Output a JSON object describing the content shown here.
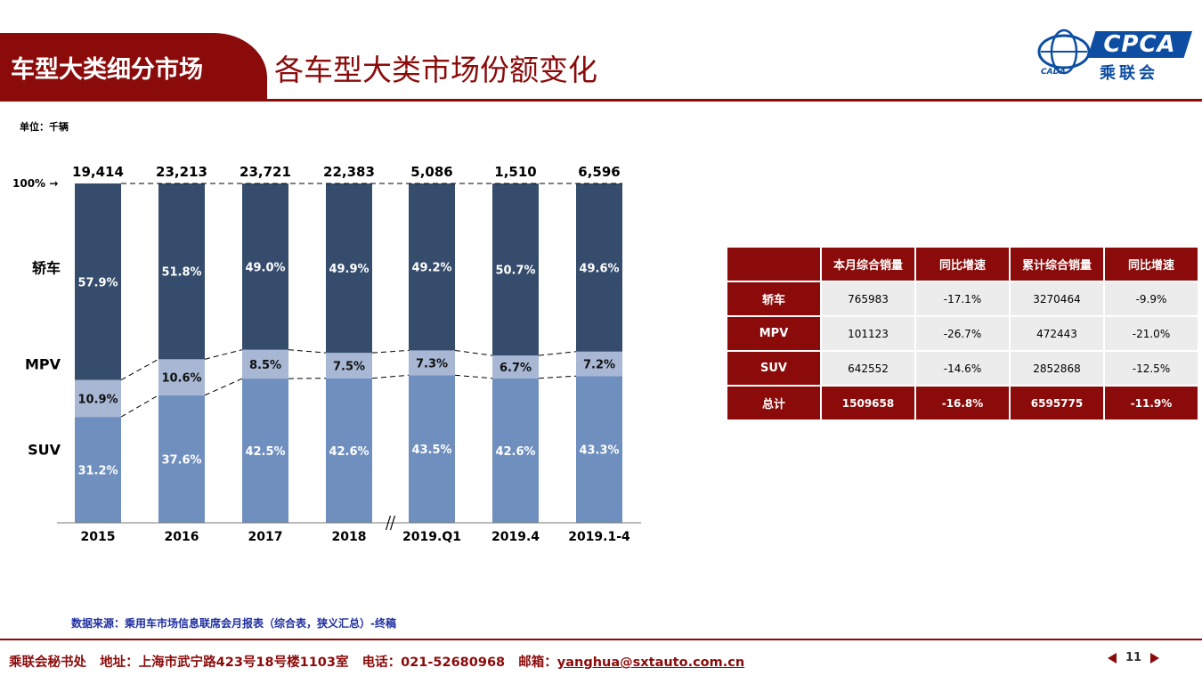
{
  "header": {
    "section_label": "车型大类细分市场",
    "title": "各车型大类市场份额变化"
  },
  "logo": {
    "brand": "CPCA",
    "cn_name": "乘联会",
    "sub": "CADA"
  },
  "unit_label": "单位：千辆",
  "chart_data": {
    "type": "bar",
    "stacked": true,
    "normalized": true,
    "ref_label": "100% →",
    "categories": [
      "2015",
      "2016",
      "2017",
      "2018",
      "2019.Q1",
      "2019.4",
      "2019.1-4"
    ],
    "totals": [
      "19,414",
      "23,213",
      "23,721",
      "22,383",
      "5,086",
      "1,510",
      "6,596"
    ],
    "series": [
      {
        "name": "SUV",
        "values": [
          31.2,
          37.6,
          42.5,
          42.6,
          43.5,
          42.6,
          43.3
        ],
        "labels": [
          "31.2%",
          "37.6%",
          "42.5%",
          "42.6%",
          "43.5%",
          "42.6%",
          "43.3%"
        ]
      },
      {
        "name": "MPV",
        "values": [
          10.9,
          10.6,
          8.5,
          7.5,
          7.3,
          6.7,
          7.2
        ],
        "labels": [
          "10.9%",
          "10.6%",
          "8.5%",
          "7.5%",
          "7.3%",
          "6.7%",
          "7.2%"
        ]
      },
      {
        "name": "轿车",
        "values": [
          57.9,
          51.8,
          49.0,
          49.9,
          49.2,
          50.7,
          49.6
        ],
        "labels": [
          "57.9%",
          "51.8%",
          "49.0%",
          "49.9%",
          "49.2%",
          "50.7%",
          "49.6%"
        ]
      }
    ],
    "colors": {
      "SUV": "#6f8fbe",
      "MPV": "#a7b7d4",
      "轿车": "#354c6c"
    },
    "axis_break_after": "2018",
    "ylim": [
      0,
      100
    ]
  },
  "table": {
    "headers": [
      "",
      "本月综合销量",
      "同比增速",
      "累计综合销量",
      "同比增速"
    ],
    "rows": [
      {
        "label": "轿车",
        "cells": [
          "765983",
          "-17.1%",
          "3270464",
          "-9.9%"
        ]
      },
      {
        "label": "MPV",
        "cells": [
          "101123",
          "-26.7%",
          "472443",
          "-21.0%"
        ]
      },
      {
        "label": "SUV",
        "cells": [
          "642552",
          "-14.6%",
          "2852868",
          "-12.5%"
        ]
      },
      {
        "label": "总计",
        "cells": [
          "1509658",
          "-16.8%",
          "6595775",
          "-11.9%"
        ]
      }
    ]
  },
  "source": "数据来源：乘用车市场信息联席会月报表（综合表，狭义汇总）-终稿",
  "footer": {
    "org": "乘联会秘书处",
    "address": "地址：上海市武宁路423号18号楼1103室",
    "phone": "电话：021-52680968",
    "email_label": "邮箱：",
    "email": "yanghua@sxtauto.com.cn"
  },
  "page_number": "11"
}
